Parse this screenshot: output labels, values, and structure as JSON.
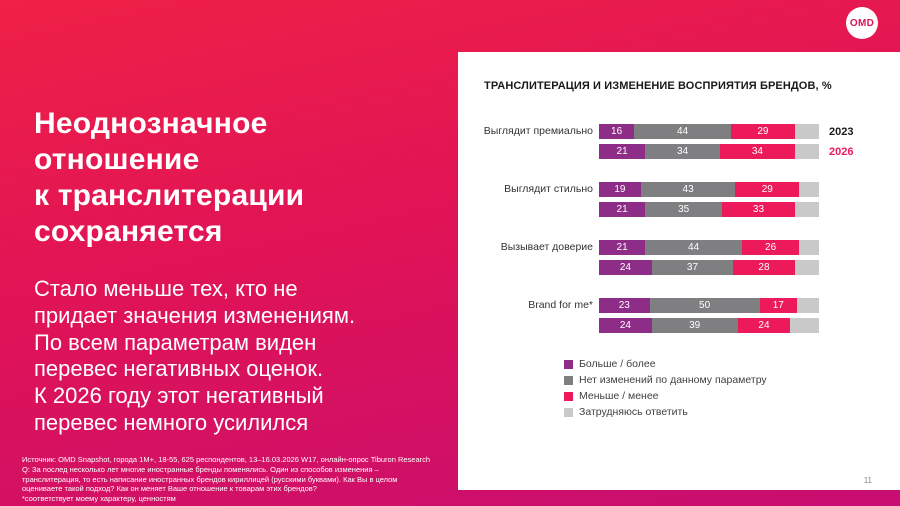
{
  "accent_colors": {
    "gradient_top": "#ef2147",
    "gradient_bottom": "#c70e71",
    "purple": "#8e2d87",
    "gray": "#7f7f82",
    "pink": "#ec1a5a",
    "light_gray": "#c9c9c9"
  },
  "logo": {
    "text": "OMD"
  },
  "left_panel": {
    "headline": "Неоднозначное\nотношение\nк транслитерации\nсохраняется",
    "body": "Стало меньше тех, кто не\nпридает значения изменениям.\nПо всем параметрам виден\nперевес негативных оценок.\nК 2026 году этот негативный\nперевес немного усилился",
    "footnote": "Источник: OMD Snapshot, города 1М+, 18-55, 625  респондентов, 13–16.03.2026 W17,  онлайн-опрос Tiburon Research\nQ: За послед несколько лет многие иностранные бренды поменялись. Один из способов изменения –\nтранслитерация, то есть написание иностранных брендов кириллицей (русскими буквами).  Как Вы в целом\nоцениваете такой подход? Как он меняет Ваше отношение к товарам этих брендов?\n *соответствует моему характеру, ценностям"
  },
  "chart_data": {
    "type": "bar",
    "variant": "horizontal-stacked-grouped",
    "title": "ТРАНСЛИТЕРАЦИЯ И ИЗМЕНЕНИЕ ВОСПРИЯТИЯ БРЕНДОВ, %",
    "xlim": [
      0,
      100
    ],
    "categories": [
      "Выглядит премиально",
      "Выглядит стильно",
      "Вызывает доверие",
      "Brand for me*"
    ],
    "rows_per_category": [
      "2023",
      "2026"
    ],
    "series": [
      "Больше / более",
      "Нет изменений по данному параметру",
      "Меньше / менее",
      "Затрудняюсь ответить"
    ],
    "segment_colors": [
      "#8e2d87",
      "#7f7f82",
      "#ec1a5a",
      "#c9c9c9"
    ],
    "year_label_colors": [
      "#1a1a1a",
      "#ec1a5a"
    ],
    "unlabeled_segment_index": 3,
    "groups": [
      {
        "category": "Выглядит премиально",
        "rows": [
          {
            "year": "2023",
            "values": [
              16,
              44,
              29,
              11
            ]
          },
          {
            "year": "2026",
            "values": [
              21,
              34,
              34,
              11
            ]
          }
        ]
      },
      {
        "category": "Выглядит стильно",
        "rows": [
          {
            "year": "2023",
            "values": [
              19,
              43,
              29,
              9
            ]
          },
          {
            "year": "2026",
            "values": [
              21,
              35,
              33,
              11
            ]
          }
        ]
      },
      {
        "category": "Вызывает доверие",
        "rows": [
          {
            "year": "2023",
            "values": [
              21,
              44,
              26,
              9
            ]
          },
          {
            "year": "2026",
            "values": [
              24,
              37,
              28,
              11
            ]
          }
        ]
      },
      {
        "category": "Brand for me*",
        "rows": [
          {
            "year": "2023",
            "values": [
              23,
              50,
              17,
              10
            ]
          },
          {
            "year": "2026",
            "values": [
              24,
              39,
              24,
              13
            ]
          }
        ]
      }
    ],
    "legend": [
      {
        "label": "Больше / более",
        "color": "#8e2d87"
      },
      {
        "label": "Нет изменений по данному параметру",
        "color": "#7f7f82"
      },
      {
        "label": "Меньше / менее",
        "color": "#ec1a5a"
      },
      {
        "label": "Затрудняюсь ответить",
        "color": "#c9c9c9"
      }
    ],
    "legend_position": "bottom-left"
  },
  "page_number": "11"
}
